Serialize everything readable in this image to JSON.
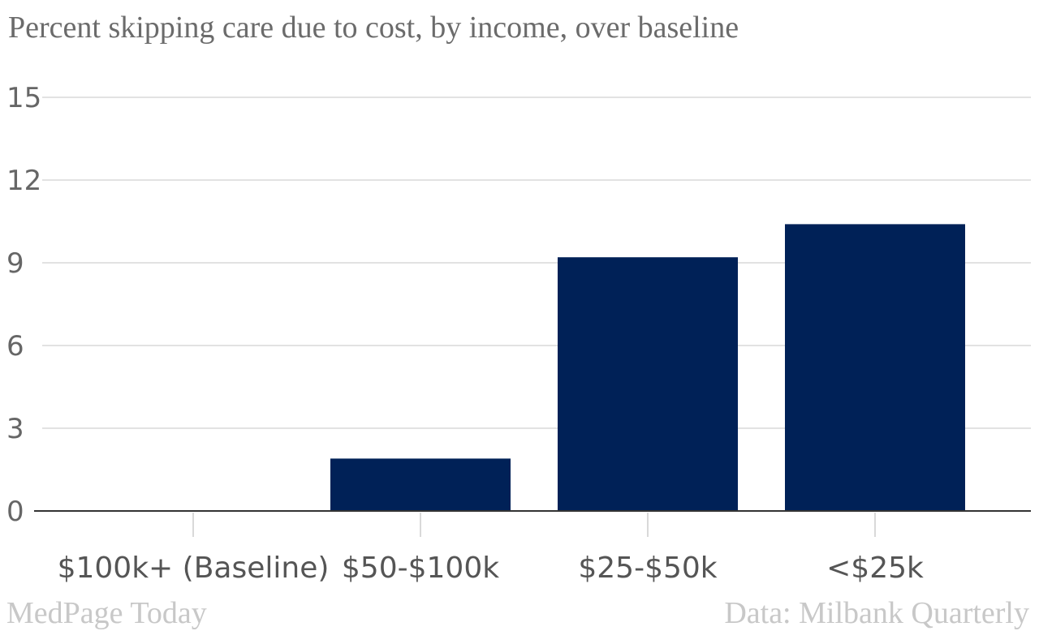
{
  "chart_data": {
    "type": "bar",
    "title": "Percent skipping care due to cost, by income, over baseline",
    "categories": [
      "$100k+ (Baseline)",
      "$50-$100k",
      "$25-$50k",
      "<$25k"
    ],
    "values": [
      0,
      1.9,
      9.2,
      10.4
    ],
    "xlabel": "",
    "ylabel": "",
    "ylim": [
      0,
      15
    ],
    "yticks": [
      0,
      3,
      6,
      9,
      12,
      15
    ],
    "grid": true,
    "legend": "none",
    "bar_color": "#002157"
  },
  "footer": {
    "brand": "MedPage Today",
    "source": "Data: Milbank Quarterly"
  }
}
